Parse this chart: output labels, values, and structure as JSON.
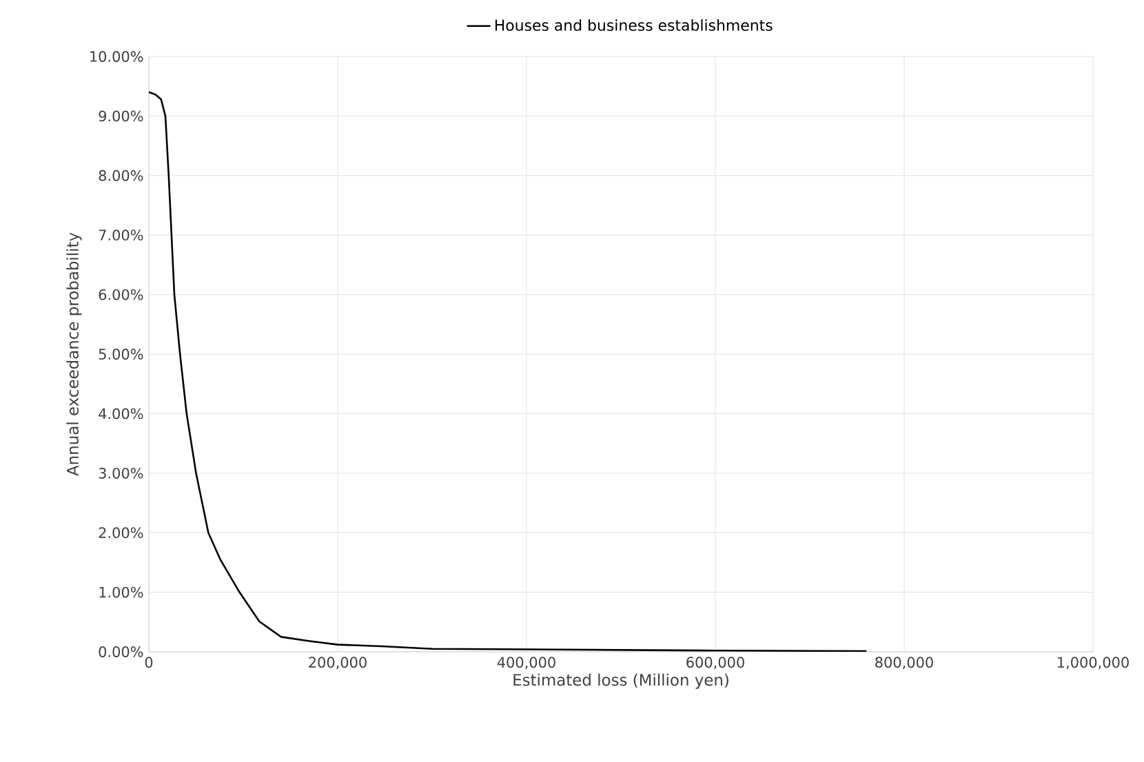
{
  "chart_data": {
    "type": "line",
    "xlabel": "Estimated loss (Million yen)",
    "ylabel": "Annual exceedance probability",
    "legend": "top",
    "grid": true,
    "line_style": "solid",
    "marker": "none",
    "xlim": [
      0,
      1000000
    ],
    "ylim": [
      0,
      10
    ],
    "xticks": [
      {
        "value": 0,
        "label": "0"
      },
      {
        "value": 200000,
        "label": "200,000"
      },
      {
        "value": 400000,
        "label": "400,000"
      },
      {
        "value": 600000,
        "label": "600,000"
      },
      {
        "value": 800000,
        "label": "800,000"
      },
      {
        "value": 1000000,
        "label": "1,000,000"
      }
    ],
    "yticks": [
      {
        "value": 0,
        "label": "0.00%"
      },
      {
        "value": 1,
        "label": "1.00%"
      },
      {
        "value": 2,
        "label": "2.00%"
      },
      {
        "value": 3,
        "label": "3.00%"
      },
      {
        "value": 4,
        "label": "4.00%"
      },
      {
        "value": 5,
        "label": "5.00%"
      },
      {
        "value": 6,
        "label": "6.00%"
      },
      {
        "value": 7,
        "label": "7.00%"
      },
      {
        "value": 8,
        "label": "8.00%"
      },
      {
        "value": 9,
        "label": "9.00%"
      },
      {
        "value": 10,
        "label": "10.00%"
      }
    ],
    "series": [
      {
        "name": "Houses and business establishments",
        "color": "#000000",
        "x": [
          0,
          7000,
          13000,
          17500,
          21000,
          24000,
          27000,
          33000,
          40000,
          50000,
          63000,
          76000,
          96000,
          117000,
          140000,
          170000,
          200000,
          250000,
          300000,
          400000,
          500000,
          600000,
          700000,
          760000
        ],
        "values": [
          9.4,
          9.36,
          9.28,
          9.0,
          8.0,
          7.0,
          6.0,
          5.0,
          4.0,
          3.0,
          2.0,
          1.54,
          1.0,
          0.51,
          0.25,
          0.18,
          0.12,
          0.09,
          0.05,
          0.04,
          0.03,
          0.02,
          0.015,
          0.01
        ]
      }
    ]
  }
}
